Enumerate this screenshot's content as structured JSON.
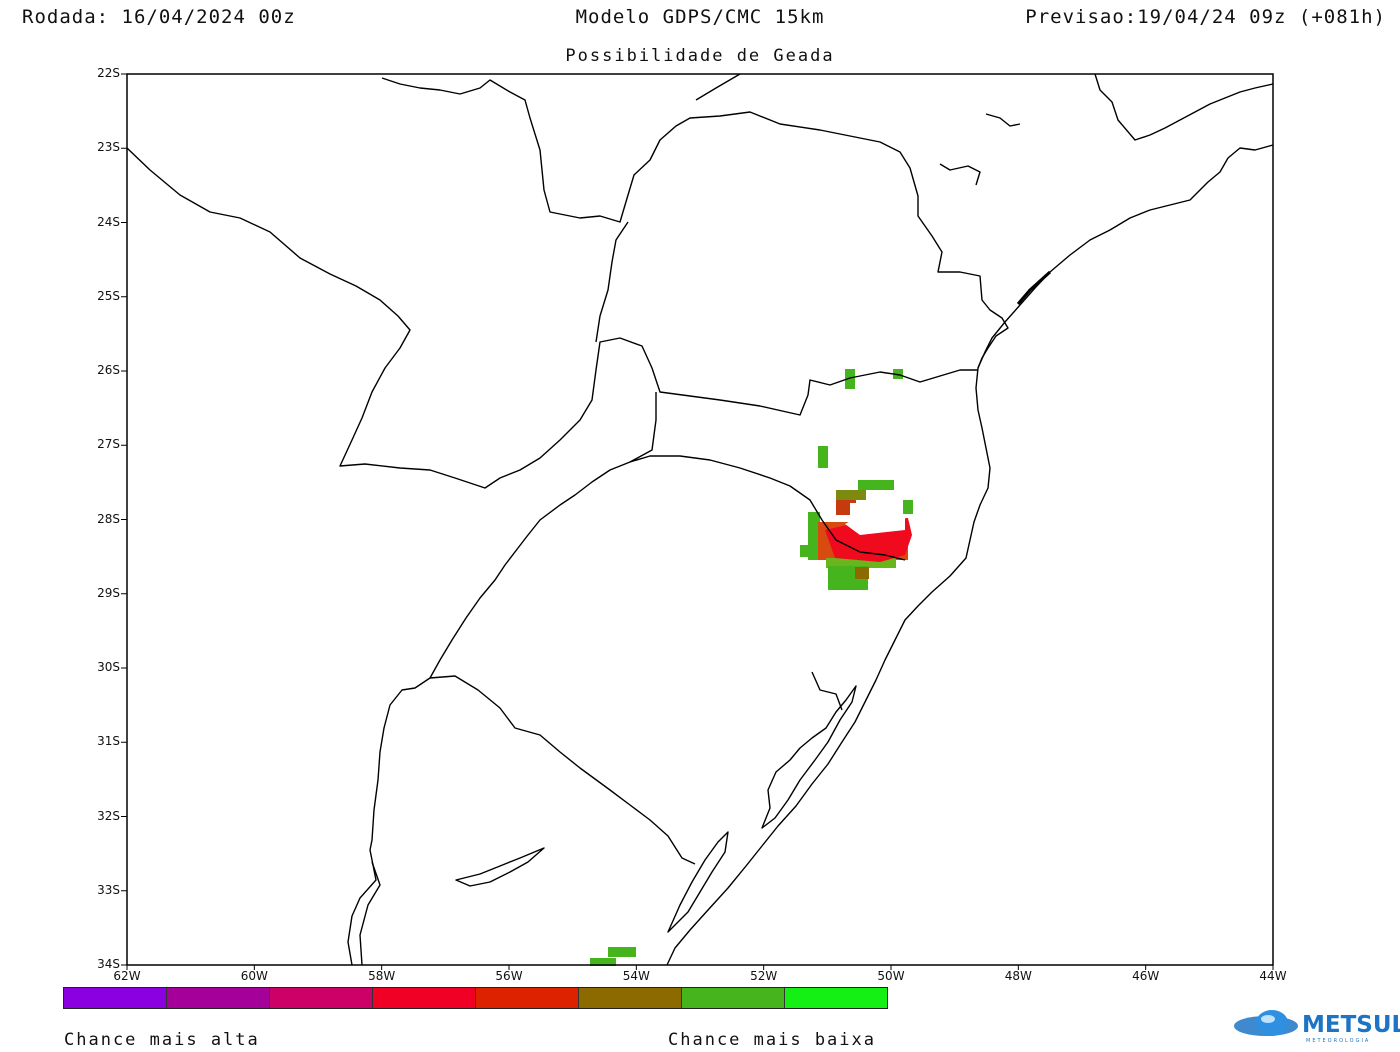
{
  "header": {
    "left": "Rodada: 16/04/2024 00z",
    "center": "Modelo GDPS/CMC 15km",
    "right": "Previsao:19/04/24 09z (+081h)"
  },
  "subtitle": "Possibilidade de Geada",
  "axes": {
    "lat_labels": [
      "22S",
      "23S",
      "24S",
      "25S",
      "26S",
      "27S",
      "28S",
      "29S",
      "30S",
      "31S",
      "32S",
      "33S",
      "34S"
    ],
    "lon_labels": [
      "62W",
      "60W",
      "58W",
      "56W",
      "54W",
      "52W",
      "50W",
      "48W",
      "46W",
      "44W"
    ],
    "lat_range": [
      -34,
      -22
    ],
    "lon_range": [
      -62,
      -44
    ]
  },
  "colorbar": {
    "colors": [
      "#8a00e0",
      "#a6009a",
      "#cc0066",
      "#f00024",
      "#dd2200",
      "#8c6a00",
      "#46b41c",
      "#14f014"
    ],
    "label_high": "Chance mais alta",
    "label_low": "Chance mais baixa"
  },
  "logo": {
    "name": "METSUL",
    "sub": "METEOROLOGIA"
  },
  "icons": {
    "logo": "globe-icon"
  }
}
